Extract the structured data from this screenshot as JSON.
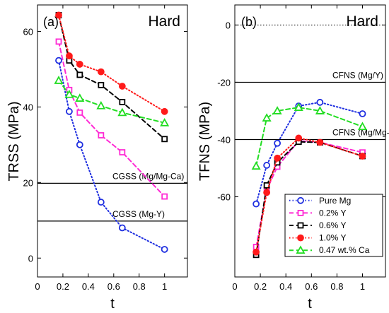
{
  "chart_data": [
    {
      "type": "line",
      "panel_label": "(a)",
      "annotation": "Hard",
      "xlabel": "t",
      "ylabel": "TRSS (MPa)",
      "xlim": [
        0,
        1.18
      ],
      "ylim": [
        -5,
        67
      ],
      "xticks": [
        "0",
        "0.2",
        "0.4",
        "0.6",
        "0.8",
        "1"
      ],
      "yticks": [
        "0",
        "20",
        "40",
        "60"
      ],
      "x": [
        0.167,
        0.25,
        0.333,
        0.5,
        0.667,
        1.0
      ],
      "series": [
        {
          "name": "Pure Mg",
          "color": "#1f2fe0",
          "marker": "circle",
          "dash": "dot",
          "values": [
            52.3,
            38.8,
            30,
            14.8,
            8.0,
            2.3
          ]
        },
        {
          "name": "0.2% Y",
          "color": "#ff2ad4",
          "marker": "square",
          "dash": "dash",
          "values": [
            57.3,
            44.5,
            38.5,
            32.5,
            28,
            16.3
          ]
        },
        {
          "name": "0.6% Y",
          "color": "#000000",
          "marker": "square",
          "dash": "dash",
          "values": [
            64.3,
            52.3,
            48.5,
            45.8,
            41.3,
            31.5
          ]
        },
        {
          "name": "1.0% Y",
          "color": "#ff1a1a",
          "marker": "circle-filled",
          "dash": "dot",
          "values": [
            64.3,
            53.5,
            51.3,
            49.3,
            45.5,
            38.8
          ]
        },
        {
          "name": "0.47 wt.% Ca",
          "color": "#22dd22",
          "marker": "triangle",
          "dash": "dash",
          "values": [
            47,
            43.3,
            42.3,
            40.3,
            38.5,
            35.8
          ]
        }
      ],
      "reference_lines": [
        {
          "label": "CGSS (Mg/Mg-Ca)",
          "value": 19.8
        },
        {
          "label": "CGSS (Mg-Y)",
          "value": 9.8
        }
      ]
    },
    {
      "type": "line",
      "panel_label": "(b)",
      "annotation": "Hard",
      "xlabel": "t",
      "ylabel": "TFNS (MPa)",
      "xlim": [
        0,
        1.18
      ],
      "ylim": [
        -88,
        7
      ],
      "xticks": [
        "0",
        "0.2",
        "0.4",
        "0.6",
        "0.8",
        "1"
      ],
      "yticks": [
        "0",
        "-20",
        "-40",
        "-60"
      ],
      "x": [
        0.167,
        0.25,
        0.333,
        0.5,
        0.667,
        1.0
      ],
      "series": [
        {
          "name": "Pure Mg",
          "color": "#1f2fe0",
          "marker": "circle",
          "dash": "dot",
          "values": [
            -62.5,
            -49,
            -41.3,
            -28.3,
            -27,
            -31
          ]
        },
        {
          "name": "0.2% Y",
          "color": "#ff2ad4",
          "marker": "square",
          "dash": "dash",
          "values": [
            -77.5,
            -57.5,
            -49.5,
            -40.5,
            -41,
            -44.5
          ]
        },
        {
          "name": "0.6% Y",
          "color": "#000000",
          "marker": "square",
          "dash": "dash",
          "values": [
            -80.3,
            -56,
            -48,
            -40.8,
            -41,
            -45.8
          ]
        },
        {
          "name": "1.0% Y",
          "color": "#ff1a1a",
          "marker": "circle-filled",
          "dash": "dot",
          "values": [
            -79.3,
            -58.5,
            -46.5,
            -39.5,
            -41,
            -45.8
          ]
        },
        {
          "name": "0.47 wt.% Ca",
          "color": "#22dd22",
          "marker": "triangle",
          "dash": "dash",
          "values": [
            -49.3,
            -32.5,
            -30,
            -28.8,
            -30,
            -35.5
          ]
        }
      ],
      "reference_lines": [
        {
          "label": "CFNS (Mg/Y)",
          "value": -20
        },
        {
          "label": "CFNS (Mg/Mg-Ca)",
          "value": -40
        }
      ],
      "zero_line": true,
      "legend_position": "bottom-right"
    }
  ]
}
